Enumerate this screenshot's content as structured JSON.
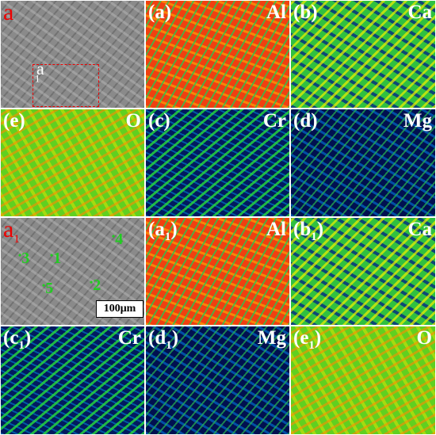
{
  "panels": [
    {
      "label": "a",
      "inset_label": "a",
      "inset_sub": "1"
    },
    {
      "label": "(a)",
      "element": "Al"
    },
    {
      "label": "(b)",
      "element": "Ca"
    },
    {
      "label": "(e)",
      "element": "O"
    },
    {
      "label": "(c)",
      "element": "Cr"
    },
    {
      "label": "(d)",
      "element": "Mg"
    },
    {
      "label": "a",
      "label_sub": "1",
      "spots": [
        "3",
        "1",
        "4",
        "5",
        "2"
      ],
      "scale_bar": "100μm"
    },
    {
      "label": "(a",
      "label_sub": "1",
      "label_end": ")",
      "element": "Al"
    },
    {
      "label": "(b",
      "label_sub": "1",
      "label_end": ")",
      "element": "Ca"
    },
    {
      "label": "(c",
      "label_sub": "1",
      "label_end": ")",
      "element": "Cr"
    },
    {
      "label": "(d",
      "label_sub": "1",
      "label_end": ")",
      "element": "Mg"
    },
    {
      "label": "(e",
      "label_sub": "1",
      "label_end": ")",
      "element": "O"
    }
  ]
}
